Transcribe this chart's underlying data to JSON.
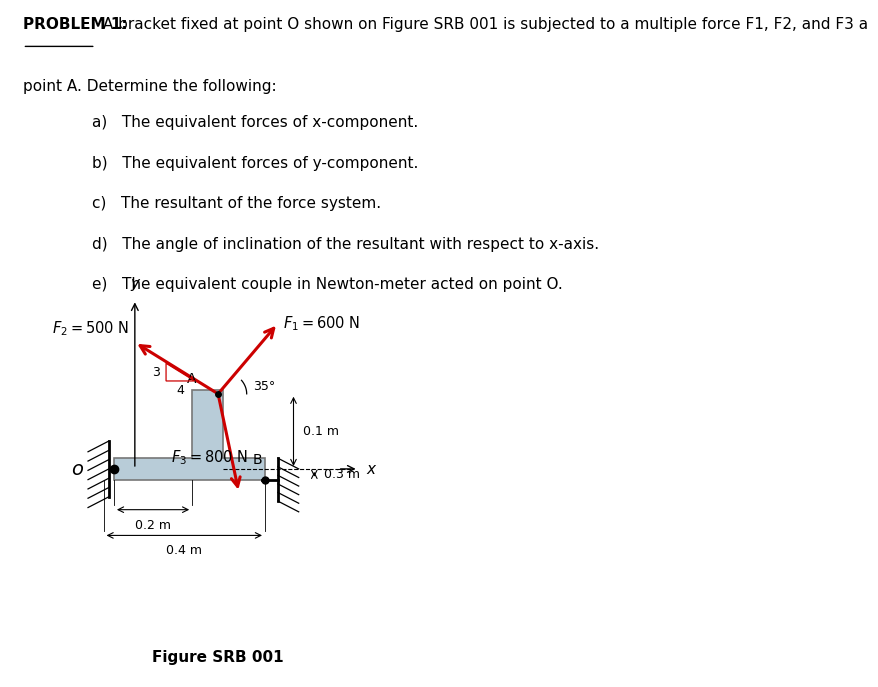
{
  "title_bold": "PROBLEM 1:",
  "title_rest": " A bracket fixed at point O shown on Figure SRB 001 is subjected to a multiple force F1, F2, and F3 a",
  "line2": "point A. Determine the following:",
  "items": [
    "a)   The equivalent forces of x-component.",
    "b)   The equivalent forces of y-component.",
    "c)   The resultant of the force system.",
    "d)   The angle of inclination of the resultant with respect to x-axis.",
    "e)   The equivalent couple in Newton-meter acted on point O."
  ],
  "figure_caption": "Figure SRB 001",
  "bg_color": "#ffffff",
  "bracket_color": "#b8ccd8",
  "bracket_edge": "#777777",
  "arrow_color": "#cc0000",
  "dim_color": "#000000",
  "font_size_text": 11,
  "font_size_label": 10.5
}
